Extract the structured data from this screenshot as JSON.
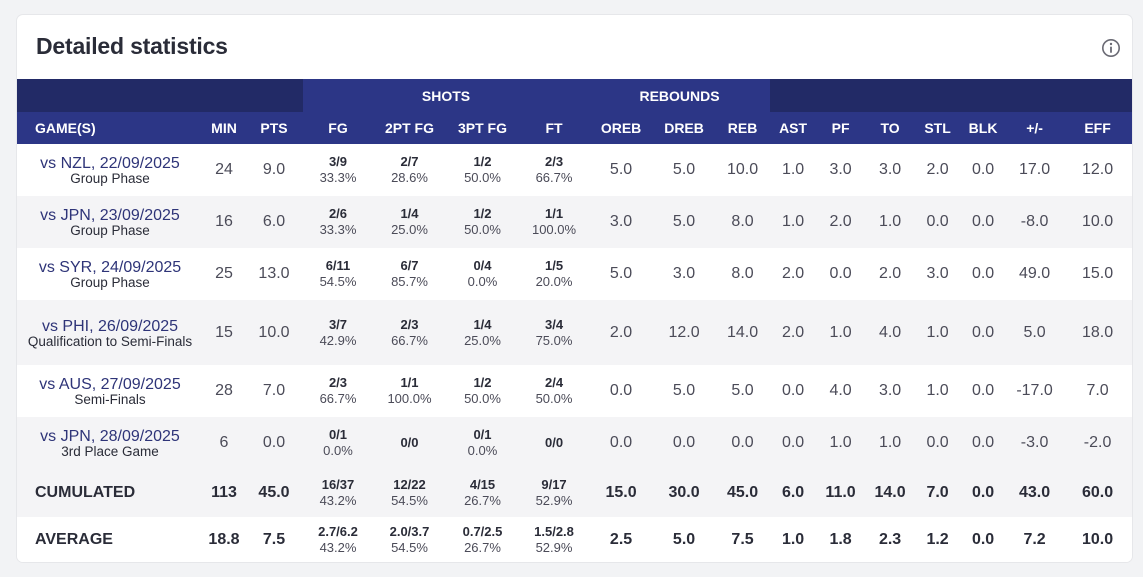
{
  "title": "Detailed statistics",
  "info_icon": "info-circle-icon",
  "group_headers": {
    "shots": "SHOTS",
    "rebounds": "REBOUNDS"
  },
  "columns": [
    "GAME(S)",
    "MIN",
    "PTS",
    "FG",
    "2PT FG",
    "3PT FG",
    "FT",
    "OREB",
    "DREB",
    "REB",
    "AST",
    "PF",
    "TO",
    "STL",
    "BLK",
    "+/-",
    "EFF"
  ],
  "games": [
    {
      "name": "vs NZL, 22/09/2025",
      "phase": "Group Phase",
      "min": "24",
      "pts": "9.0",
      "fg": [
        "3/9",
        "33.3%"
      ],
      "fg2": [
        "2/7",
        "28.6%"
      ],
      "fg3": [
        "1/2",
        "50.0%"
      ],
      "ft": [
        "2/3",
        "66.7%"
      ],
      "oreb": "5.0",
      "dreb": "5.0",
      "reb": "10.0",
      "ast": "1.0",
      "pf": "3.0",
      "to": "3.0",
      "stl": "2.0",
      "blk": "0.0",
      "pm": "17.0",
      "eff": "12.0"
    },
    {
      "name": "vs JPN, 23/09/2025",
      "phase": "Group Phase",
      "min": "16",
      "pts": "6.0",
      "fg": [
        "2/6",
        "33.3%"
      ],
      "fg2": [
        "1/4",
        "25.0%"
      ],
      "fg3": [
        "1/2",
        "50.0%"
      ],
      "ft": [
        "1/1",
        "100.0%"
      ],
      "oreb": "3.0",
      "dreb": "5.0",
      "reb": "8.0",
      "ast": "1.0",
      "pf": "2.0",
      "to": "1.0",
      "stl": "0.0",
      "blk": "0.0",
      "pm": "-8.0",
      "eff": "10.0"
    },
    {
      "name": "vs SYR, 24/09/2025",
      "phase": "Group Phase",
      "min": "25",
      "pts": "13.0",
      "fg": [
        "6/11",
        "54.5%"
      ],
      "fg2": [
        "6/7",
        "85.7%"
      ],
      "fg3": [
        "0/4",
        "0.0%"
      ],
      "ft": [
        "1/5",
        "20.0%"
      ],
      "oreb": "5.0",
      "dreb": "3.0",
      "reb": "8.0",
      "ast": "2.0",
      "pf": "0.0",
      "to": "2.0",
      "stl": "3.0",
      "blk": "0.0",
      "pm": "49.0",
      "eff": "15.0"
    },
    {
      "name": "vs PHI, 26/09/2025",
      "phase": "Qualification to Semi-Finals",
      "min": "15",
      "pts": "10.0",
      "fg": [
        "3/7",
        "42.9%"
      ],
      "fg2": [
        "2/3",
        "66.7%"
      ],
      "fg3": [
        "1/4",
        "25.0%"
      ],
      "ft": [
        "3/4",
        "75.0%"
      ],
      "oreb": "2.0",
      "dreb": "12.0",
      "reb": "14.0",
      "ast": "2.0",
      "pf": "1.0",
      "to": "4.0",
      "stl": "1.0",
      "blk": "0.0",
      "pm": "5.0",
      "eff": "18.0"
    },
    {
      "name": "vs AUS, 27/09/2025",
      "phase": "Semi-Finals",
      "min": "28",
      "pts": "7.0",
      "fg": [
        "2/3",
        "66.7%"
      ],
      "fg2": [
        "1/1",
        "100.0%"
      ],
      "fg3": [
        "1/2",
        "50.0%"
      ],
      "ft": [
        "2/4",
        "50.0%"
      ],
      "oreb": "0.0",
      "dreb": "5.0",
      "reb": "5.0",
      "ast": "0.0",
      "pf": "4.0",
      "to": "3.0",
      "stl": "1.0",
      "blk": "0.0",
      "pm": "-17.0",
      "eff": "7.0"
    },
    {
      "name": "vs JPN, 28/09/2025",
      "phase": "3rd Place Game",
      "min": "6",
      "pts": "0.0",
      "fg": [
        "0/1",
        "0.0%"
      ],
      "fg2": [
        "0/0",
        ""
      ],
      "fg3": [
        "0/1",
        "0.0%"
      ],
      "ft": [
        "0/0",
        ""
      ],
      "oreb": "0.0",
      "dreb": "0.0",
      "reb": "0.0",
      "ast": "0.0",
      "pf": "1.0",
      "to": "1.0",
      "stl": "0.0",
      "blk": "0.0",
      "pm": "-3.0",
      "eff": "-2.0"
    }
  ],
  "cumulated": {
    "label": "CUMULATED",
    "min": "113",
    "pts": "45.0",
    "fg": [
      "16/37",
      "43.2%"
    ],
    "fg2": [
      "12/22",
      "54.5%"
    ],
    "fg3": [
      "4/15",
      "26.7%"
    ],
    "ft": [
      "9/17",
      "52.9%"
    ],
    "oreb": "15.0",
    "dreb": "30.0",
    "reb": "45.0",
    "ast": "6.0",
    "pf": "11.0",
    "to": "14.0",
    "stl": "7.0",
    "blk": "0.0",
    "pm": "43.0",
    "eff": "60.0"
  },
  "average": {
    "label": "AVERAGE",
    "min": "18.8",
    "pts": "7.5",
    "fg": [
      "2.7/6.2",
      "43.2%"
    ],
    "fg2": [
      "2.0/3.7",
      "54.5%"
    ],
    "fg3": [
      "0.7/2.5",
      "26.7%"
    ],
    "ft": [
      "1.5/2.8",
      "52.9%"
    ],
    "oreb": "2.5",
    "dreb": "5.0",
    "reb": "7.5",
    "ast": "1.0",
    "pf": "1.8",
    "to": "2.3",
    "stl": "1.2",
    "blk": "0.0",
    "pm": "7.2",
    "eff": "10.0"
  }
}
